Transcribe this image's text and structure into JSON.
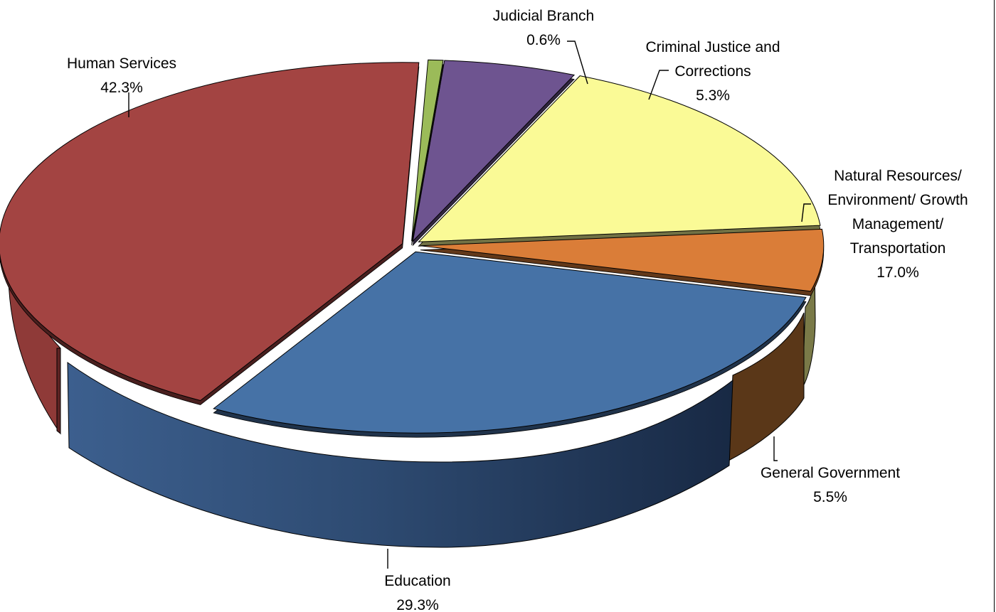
{
  "chart_data": {
    "type": "pie",
    "variant": "3d-exploded",
    "title": "",
    "slices": [
      {
        "key": "judicial",
        "label_lines": [
          "Judicial Branch"
        ],
        "value_label": "0.6%",
        "value": 0.6,
        "color": "#9bbb59"
      },
      {
        "key": "criminal",
        "label_lines": [
          "Criminal Justice and",
          "Corrections"
        ],
        "value_label": "5.3%",
        "value": 5.3,
        "color": "#6e5490"
      },
      {
        "key": "natural",
        "label_lines": [
          "Natural Resources/",
          "Environment/ Growth",
          "Management/",
          "Transportation"
        ],
        "value_label": "17.0%",
        "value": 17.0,
        "color": "#fafa96"
      },
      {
        "key": "general",
        "label_lines": [
          "General Government"
        ],
        "value_label": "5.5%",
        "value": 5.5,
        "color": "#da7d38"
      },
      {
        "key": "education",
        "label_lines": [
          "Education"
        ],
        "value_label": "29.3%",
        "value": 29.3,
        "color": "#4672a6"
      },
      {
        "key": "human",
        "label_lines": [
          "Human Services"
        ],
        "value_label": "42.3%",
        "value": 42.3,
        "color": "#a34442"
      }
    ]
  }
}
